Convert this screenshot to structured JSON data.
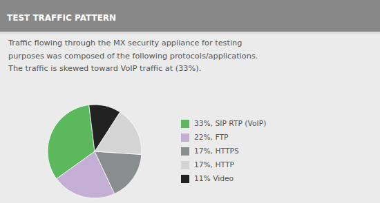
{
  "chart_data": {
    "type": "pie",
    "title": "TEST TRAFFIC PATTERN",
    "subtitle": "Traffic flowing through the MX security appliance for testing\npurposes was composed of the following protocols/applications.\nThe traffic is skewed toward VoIP traffic at (33%).",
    "categories": [
      "33%, SIP RTP (VoIP)",
      "22%, FTP",
      "17%, HTTPS",
      "17%, HTTP",
      "11% Video"
    ],
    "values": [
      33,
      22,
      17,
      17,
      11
    ],
    "colors": [
      "#5cb85c",
      "#c3afd4",
      "#888e8e",
      "#d5d5d5",
      "#222222"
    ],
    "legend": "right"
  }
}
